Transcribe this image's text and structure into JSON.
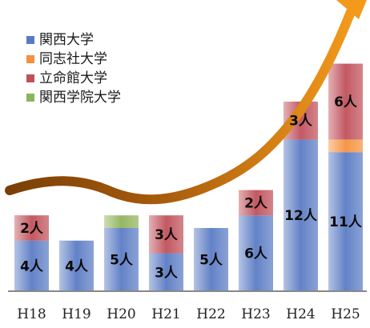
{
  "chart_data": {
    "type": "bar",
    "stacked": true,
    "categories": [
      "H18",
      "H19",
      "H20",
      "H21",
      "H22",
      "H23",
      "H24",
      "H25"
    ],
    "series": [
      {
        "name": "関西大学",
        "values": [
          4,
          4,
          5,
          3,
          5,
          6,
          12,
          11
        ],
        "labels": [
          "4人",
          "4人",
          "5人",
          "3人",
          "5人",
          "6人",
          "12人",
          "11人"
        ],
        "color": "#5a7bc4"
      },
      {
        "name": "同志社大学",
        "values": [
          0,
          0,
          0,
          0,
          0,
          0,
          0,
          1
        ],
        "labels": [
          "",
          "",
          "",
          "",
          "",
          "",
          "",
          ""
        ],
        "color": "#f5913e"
      },
      {
        "name": "立命館大学",
        "values": [
          2,
          0,
          0,
          3,
          0,
          2,
          3,
          6
        ],
        "labels": [
          "2人",
          "",
          "",
          "3人",
          "",
          "2人",
          "3人",
          "6人"
        ],
        "color": "#c0505a"
      },
      {
        "name": "関西学院大学",
        "values": [
          0,
          0,
          1,
          0,
          0,
          0,
          0,
          0
        ],
        "labels": [
          "",
          "",
          "",
          "",
          "",
          "",
          "",
          ""
        ],
        "color": "#8fb35a"
      }
    ],
    "legend": "top-left",
    "grid": false,
    "trend_arrow": true,
    "trend_arrow_color": "#f39a1b",
    "axis_color": "#888888"
  }
}
